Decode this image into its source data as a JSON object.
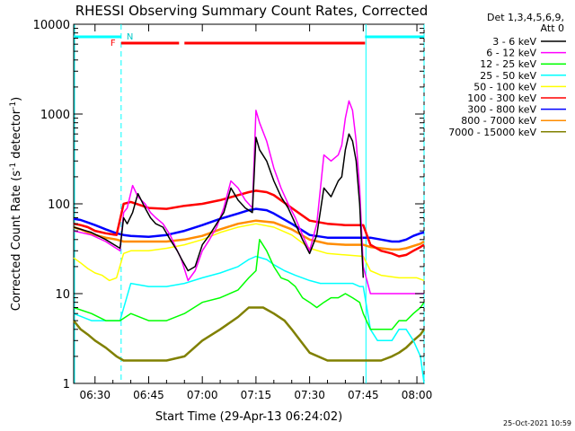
{
  "chart_data": {
    "type": "line",
    "title": "RHESSI Observing Summary Count Rates, Corrected",
    "xlabel": "Start Time (29-Apr-13 06:24:02)",
    "ylabel_main": "Corrected Count Rate (s",
    "ylabel_sup1": "-1",
    "ylabel_mid": " detector",
    "ylabel_sup2": "-1",
    "ylabel_end": ")",
    "x_start_minutes": 384.03,
    "xlim_minutes": [
      384.03,
      482
    ],
    "ylim": [
      1,
      10000
    ],
    "yscale": "log",
    "x_ticks": [
      {
        "label": "06:30",
        "minutes": 390
      },
      {
        "label": "06:45",
        "minutes": 405
      },
      {
        "label": "07:00",
        "minutes": 420
      },
      {
        "label": "07:15",
        "minutes": 435
      },
      {
        "label": "07:30",
        "minutes": 450
      },
      {
        "label": "07:45",
        "minutes": 465
      },
      {
        "label": "08:00",
        "minutes": 480
      }
    ],
    "y_ticks": [
      {
        "label": "1",
        "value": 1
      },
      {
        "label": "10",
        "value": 10
      },
      {
        "label": "100",
        "value": 100
      },
      {
        "label": "1000",
        "value": 1000
      },
      {
        "label": "10000",
        "value": 10000
      }
    ],
    "legend_header": [
      "Det 1,3,4,5,6,9,",
      "Att 0"
    ],
    "legend_position": "right",
    "footer_date": "25-Oct-2021 10:59",
    "series": [
      {
        "name": "3 - 6 keV",
        "color": "#000000",
        "x": [
          384.03,
          389,
          393,
          397,
          398,
          399,
          400.5,
          402,
          404,
          405.5,
          407,
          409,
          411,
          413,
          414,
          416,
          418,
          420,
          422,
          424,
          426,
          428,
          430,
          432,
          434,
          435,
          436,
          438,
          440,
          442,
          444,
          446,
          448,
          450,
          452,
          454,
          456,
          458,
          459,
          460,
          461,
          462,
          463,
          464,
          465
        ],
        "y": [
          55,
          48,
          40,
          32,
          70,
          60,
          80,
          130,
          90,
          70,
          60,
          55,
          40,
          30,
          25,
          18,
          20,
          35,
          45,
          60,
          80,
          150,
          110,
          90,
          80,
          550,
          400,
          300,
          180,
          120,
          90,
          60,
          40,
          28,
          45,
          150,
          120,
          180,
          200,
          400,
          600,
          500,
          300,
          100,
          15
        ]
      },
      {
        "name": "6 - 12 keV",
        "color": "#ff00ff",
        "x": [
          384.03,
          389,
          393,
          397,
          398,
          399,
          400.5,
          402,
          404,
          405.5,
          407,
          409,
          411,
          413,
          414,
          416,
          418,
          420,
          422,
          424,
          426,
          428,
          430,
          432,
          434,
          435,
          436,
          438,
          440,
          442,
          444,
          446,
          448,
          450,
          452,
          454,
          456,
          458,
          459,
          460,
          461,
          462,
          463,
          464,
          465,
          467,
          469,
          471,
          473,
          475,
          477,
          479,
          481,
          482
        ],
        "y": [
          50,
          45,
          38,
          30,
          80,
          90,
          160,
          120,
          100,
          80,
          70,
          60,
          45,
          30,
          25,
          14,
          18,
          30,
          40,
          55,
          90,
          180,
          150,
          110,
          90,
          1100,
          800,
          500,
          250,
          150,
          100,
          70,
          45,
          30,
          60,
          350,
          300,
          350,
          450,
          900,
          1400,
          1100,
          500,
          150,
          20,
          10,
          10,
          10,
          10,
          10,
          10,
          10,
          10,
          10
        ]
      },
      {
        "name": "12 - 25 keV",
        "color": "#00ff00",
        "x": [
          384.03,
          389,
          393,
          397,
          400,
          405,
          410,
          415,
          420,
          425,
          430,
          433,
          435,
          436,
          438,
          440,
          442,
          444,
          446,
          448,
          450,
          452,
          454,
          456,
          458,
          460,
          462,
          464,
          465,
          467,
          469,
          471,
          473,
          475,
          477,
          479,
          481,
          482
        ],
        "y": [
          7,
          6,
          5,
          5,
          6,
          5,
          5,
          6,
          8,
          9,
          11,
          15,
          18,
          40,
          30,
          20,
          15,
          14,
          12,
          9,
          8,
          7,
          8,
          9,
          9,
          10,
          9,
          8,
          6,
          4,
          4,
          4,
          4,
          5,
          5,
          6,
          7,
          8
        ]
      },
      {
        "name": "25 - 50 keV",
        "color": "#00ffff",
        "x": [
          384.03,
          389,
          393,
          397,
          400,
          405,
          410,
          415,
          420,
          425,
          430,
          433,
          435,
          438,
          440,
          443,
          446,
          450,
          453,
          456,
          460,
          462,
          464,
          465,
          467,
          469,
          471,
          473,
          475,
          477,
          479,
          481,
          482
        ],
        "y": [
          6,
          5,
          5,
          5,
          13,
          12,
          12,
          13,
          15,
          17,
          20,
          24,
          26,
          24,
          21,
          18,
          16,
          14,
          13,
          13,
          13,
          13,
          12,
          12,
          4,
          3,
          3,
          3,
          4,
          4,
          3,
          2,
          1
        ]
      },
      {
        "name": "50 - 100 keV",
        "color": "#ffff00",
        "x": [
          384.03,
          386,
          388,
          390,
          392,
          394,
          396,
          398,
          400,
          405,
          410,
          415,
          420,
          425,
          430,
          435,
          440,
          445,
          450,
          455,
          460,
          465,
          467,
          470,
          475,
          480,
          482
        ],
        "y": [
          25,
          22,
          19,
          17,
          16,
          14,
          15,
          28,
          30,
          30,
          32,
          35,
          40,
          48,
          55,
          60,
          55,
          45,
          32,
          28,
          27,
          26,
          18,
          16,
          15,
          15,
          14
        ]
      },
      {
        "name": "100 - 300 keV",
        "color": "#ff0000",
        "x": [
          384.03,
          386,
          388,
          390,
          393,
          396,
          398,
          400,
          405,
          410,
          415,
          420,
          425,
          430,
          433,
          435,
          438,
          440,
          445,
          450,
          455,
          460,
          465,
          467,
          470,
          473,
          475,
          477,
          479,
          481,
          482
        ],
        "y": [
          60,
          58,
          55,
          50,
          47,
          45,
          100,
          105,
          90,
          88,
          95,
          100,
          110,
          125,
          135,
          140,
          135,
          125,
          90,
          65,
          60,
          58,
          58,
          35,
          30,
          28,
          26,
          27,
          30,
          33,
          35
        ]
      },
      {
        "name": "300 - 800 keV",
        "color": "#0000ff",
        "x": [
          384.03,
          386,
          388,
          390,
          393,
          396,
          398,
          400,
          405,
          410,
          415,
          420,
          425,
          430,
          433,
          435,
          438,
          440,
          445,
          450,
          455,
          460,
          465,
          467,
          470,
          473,
          475,
          477,
          479,
          481,
          482
        ],
        "y": [
          68,
          66,
          62,
          58,
          52,
          47,
          45,
          44,
          43,
          45,
          50,
          58,
          68,
          78,
          85,
          88,
          85,
          78,
          60,
          45,
          42,
          42,
          42,
          42,
          40,
          38,
          38,
          40,
          44,
          47,
          48
        ]
      },
      {
        "name": "800 - 7000 keV",
        "color": "#ff8c00",
        "x": [
          384.03,
          386,
          388,
          390,
          393,
          396,
          398,
          400,
          405,
          410,
          415,
          420,
          425,
          430,
          435,
          440,
          445,
          450,
          455,
          460,
          465,
          467,
          470,
          473,
          475,
          477,
          479,
          481,
          482
        ],
        "y": [
          55,
          52,
          48,
          45,
          42,
          40,
          38,
          38,
          38,
          38,
          40,
          44,
          52,
          60,
          65,
          62,
          52,
          40,
          36,
          35,
          35,
          33,
          32,
          31,
          31,
          32,
          34,
          36,
          38
        ]
      },
      {
        "name": "7000 - 15000 keV",
        "color": "#808000",
        "x": [
          384.03,
          386,
          388,
          390,
          393,
          396,
          398,
          400,
          403,
          405,
          410,
          415,
          420,
          425,
          430,
          433,
          435,
          437,
          440,
          443,
          445,
          450,
          455,
          460,
          463,
          465,
          467,
          470,
          473,
          475,
          477,
          479,
          481,
          482
        ],
        "y": [
          5,
          4,
          3.5,
          3,
          2.5,
          2,
          1.8,
          1.8,
          1.8,
          1.8,
          1.8,
          2,
          3,
          4,
          5.5,
          7,
          7,
          7,
          6,
          5,
          4,
          2.2,
          1.8,
          1.8,
          1.8,
          1.8,
          1.8,
          1.8,
          2,
          2.2,
          2.5,
          3,
          3.5,
          4
        ]
      }
    ],
    "flags": {
      "night_label": "N",
      "flare_label": "F",
      "saa_segments_minutes": [
        [
          384.03,
          397.3
        ],
        [
          465.5,
          482
        ]
      ],
      "night_bounds_minutes": [
        [
          384.03,
          397.3
        ],
        [
          465.5,
          482
        ]
      ],
      "flare_segments_minutes": [
        [
          397.3,
          413.5
        ],
        [
          415,
          465.5
        ]
      ]
    }
  }
}
